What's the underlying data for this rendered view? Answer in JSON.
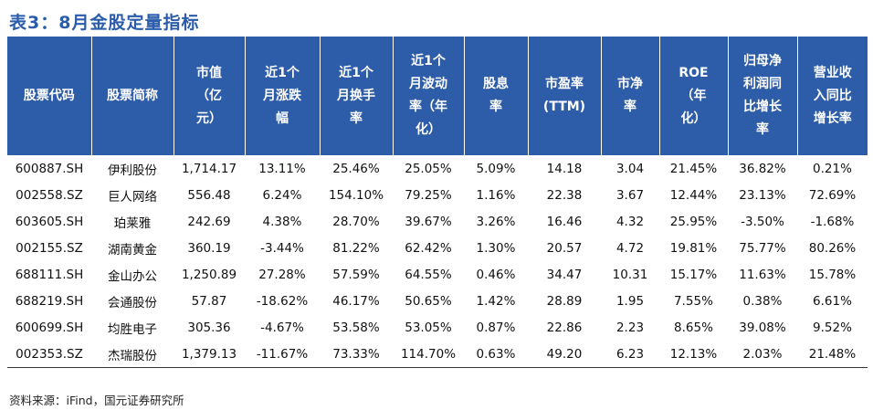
{
  "title": "表3：8月金股定量指标",
  "table": {
    "header": [
      [
        "股票代码"
      ],
      [
        "股票简称"
      ],
      [
        "市值",
        "（亿",
        "元）"
      ],
      [
        "近1个",
        "月涨跌",
        "幅"
      ],
      [
        "近1个",
        "月换手",
        "率"
      ],
      [
        "近1个",
        "月波动",
        "率（年",
        "化）"
      ],
      [
        "股息",
        "率"
      ],
      [
        "市盈率",
        "(TTM)"
      ],
      [
        "市净",
        "率"
      ],
      [
        "ROE",
        "（年",
        "化）"
      ],
      [
        "归母净",
        "利润同",
        "比增长",
        "率"
      ],
      [
        "营业收",
        "入同比",
        "增长率"
      ]
    ],
    "rows": [
      [
        "600887.SH",
        "伊利股份",
        "1,714.17",
        "13.11%",
        "25.46%",
        "25.05%",
        "5.09%",
        "14.18",
        "3.04",
        "21.45%",
        "36.82%",
        "0.21%"
      ],
      [
        "002558.SZ",
        "巨人网络",
        "556.48",
        "6.24%",
        "154.10%",
        "79.25%",
        "1.16%",
        "22.38",
        "3.67",
        "12.44%",
        "23.13%",
        "72.69%"
      ],
      [
        "603605.SH",
        "珀莱雅",
        "242.69",
        "4.38%",
        "28.70%",
        "39.67%",
        "3.26%",
        "16.46",
        "4.32",
        "25.95%",
        "-3.50%",
        "-1.68%"
      ],
      [
        "002155.SZ",
        "湖南黄金",
        "360.19",
        "-3.44%",
        "81.22%",
        "62.42%",
        "1.30%",
        "20.57",
        "4.72",
        "19.81%",
        "75.77%",
        "80.26%"
      ],
      [
        "688111.SH",
        "金山办公",
        "1,250.89",
        "27.28%",
        "57.59%",
        "64.55%",
        "0.46%",
        "34.47",
        "10.31",
        "15.17%",
        "11.63%",
        "15.78%"
      ],
      [
        "688219.SH",
        "会通股份",
        "57.87",
        "-18.62%",
        "46.17%",
        "50.65%",
        "1.42%",
        "28.89",
        "1.95",
        "7.55%",
        "0.38%",
        "6.61%"
      ],
      [
        "600699.SH",
        "均胜电子",
        "305.36",
        "-4.67%",
        "53.58%",
        "53.05%",
        "0.87%",
        "22.86",
        "2.23",
        "8.65%",
        "39.08%",
        "9.52%"
      ],
      [
        "002353.SZ",
        "杰瑞股份",
        "1,379.13",
        "-11.67%",
        "73.33%",
        "114.70%",
        "0.63%",
        "49.20",
        "6.23",
        "12.13%",
        "2.03%",
        "21.48%"
      ]
    ]
  },
  "source": "资料来源：iFind，国元证券研究所"
}
